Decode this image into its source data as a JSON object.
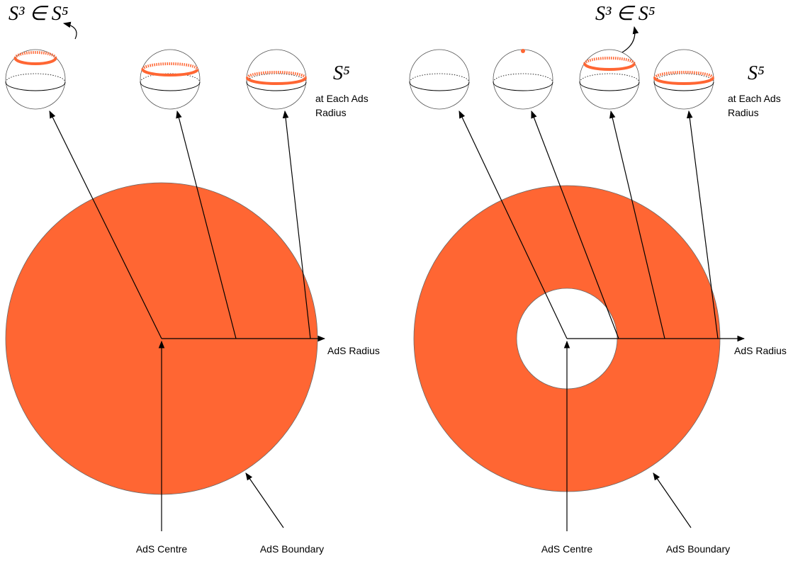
{
  "panels": [
    {
      "subsphere_label": "S³ ∈ S⁵",
      "sphere_label": "S⁵",
      "sphere_caption": [
        "at Each Ads",
        "Radius"
      ],
      "radius_label": "AdS Radius",
      "centre_label": "AdS Centre",
      "boundary_label": "AdS Boundary"
    },
    {
      "subsphere_label": "S³ ∈ S⁵",
      "sphere_label": "S⁵",
      "sphere_caption": [
        "at Each Ads",
        "Radius"
      ],
      "radius_label": "AdS Radius",
      "centre_label": "AdS Centre",
      "boundary_label": "AdS Boundary"
    }
  ]
}
